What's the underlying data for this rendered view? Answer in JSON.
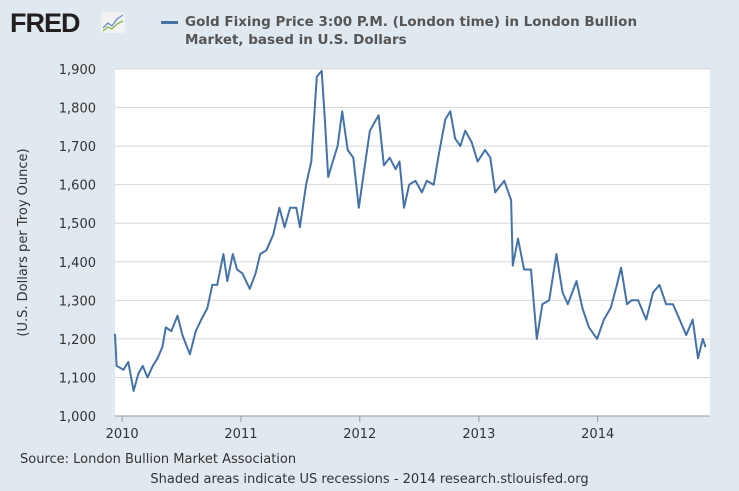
{
  "header": {
    "logo": "FRED",
    "logo_icon": "line-chart-icon"
  },
  "footer": {
    "source": "Source: London Bullion Market Association",
    "note": "Shaded areas indicate US recessions - 2014 research.stlouisfed.org"
  },
  "chart_data": {
    "type": "line",
    "title": "",
    "legend": "Gold Fixing Price 3:00 P.M. (London time) in London Bullion Market, based in U.S. Dollars",
    "legend_position": "top",
    "xlabel": "",
    "ylabel": "(U.S. Dollars per Troy Ounce)",
    "ylim": [
      1000,
      1900
    ],
    "xlim": [
      "2009-12-10",
      "2014-12-12"
    ],
    "yticks": [
      "1,000",
      "1,100",
      "1,200",
      "1,300",
      "1,400",
      "1,500",
      "1,600",
      "1,700",
      "1,800",
      "1,900"
    ],
    "xticks": [
      "2010",
      "2011",
      "2012",
      "2013",
      "2014"
    ],
    "grid": true,
    "color": "#4572a7",
    "series": [
      {
        "x": [
          "2009-12-10",
          "2009-12-15",
          "2010-01-05",
          "2010-01-20",
          "2010-02-05",
          "2010-02-20",
          "2010-03-05",
          "2010-03-20",
          "2010-04-05",
          "2010-04-20",
          "2010-05-05",
          "2010-05-15",
          "2010-06-01",
          "2010-06-20",
          "2010-07-05",
          "2010-07-28",
          "2010-08-15",
          "2010-09-01",
          "2010-09-20",
          "2010-10-05",
          "2010-10-20",
          "2010-11-08",
          "2010-11-20",
          "2010-12-07",
          "2010-12-20",
          "2011-01-05",
          "2011-01-28",
          "2011-02-15",
          "2011-03-01",
          "2011-03-20",
          "2011-04-10",
          "2011-04-29",
          "2011-05-15",
          "2011-06-01",
          "2011-06-20",
          "2011-07-01",
          "2011-07-20",
          "2011-08-05",
          "2011-08-22",
          "2011-09-06",
          "2011-09-15",
          "2011-09-26",
          "2011-10-10",
          "2011-10-25",
          "2011-11-08",
          "2011-11-25",
          "2011-12-12",
          "2011-12-29",
          "2012-01-15",
          "2012-02-01",
          "2012-02-28",
          "2012-03-15",
          "2012-04-02",
          "2012-04-20",
          "2012-05-02",
          "2012-05-16",
          "2012-06-01",
          "2012-06-20",
          "2012-07-10",
          "2012-07-25",
          "2012-08-15",
          "2012-08-31",
          "2012-09-20",
          "2012-10-05",
          "2012-10-20",
          "2012-11-05",
          "2012-11-20",
          "2012-12-10",
          "2012-12-28",
          "2013-01-20",
          "2013-02-05",
          "2013-02-20",
          "2013-03-20",
          "2013-04-10",
          "2013-04-15",
          "2013-05-01",
          "2013-05-20",
          "2013-06-10",
          "2013-06-28",
          "2013-07-15",
          "2013-08-05",
          "2013-08-27",
          "2013-09-15",
          "2013-10-01",
          "2013-10-28",
          "2013-11-15",
          "2013-12-05",
          "2013-12-30",
          "2014-01-20",
          "2014-02-10",
          "2014-03-01",
          "2014-03-14",
          "2014-04-01",
          "2014-04-15",
          "2014-05-05",
          "2014-05-30",
          "2014-06-20",
          "2014-07-10",
          "2014-07-30",
          "2014-08-20",
          "2014-09-10",
          "2014-09-30",
          "2014-10-20",
          "2014-11-05",
          "2014-11-20",
          "2014-11-28"
        ],
        "values": [
          1212,
          1130,
          1120,
          1140,
          1065,
          1110,
          1130,
          1100,
          1130,
          1150,
          1180,
          1230,
          1220,
          1260,
          1210,
          1160,
          1220,
          1250,
          1280,
          1340,
          1340,
          1420,
          1350,
          1420,
          1380,
          1370,
          1330,
          1370,
          1420,
          1430,
          1470,
          1540,
          1490,
          1540,
          1540,
          1490,
          1600,
          1660,
          1880,
          1895,
          1780,
          1620,
          1660,
          1700,
          1790,
          1690,
          1670,
          1540,
          1640,
          1740,
          1780,
          1650,
          1670,
          1640,
          1660,
          1540,
          1600,
          1610,
          1580,
          1610,
          1600,
          1680,
          1770,
          1790,
          1720,
          1700,
          1740,
          1710,
          1660,
          1690,
          1670,
          1580,
          1610,
          1560,
          1390,
          1460,
          1380,
          1380,
          1200,
          1290,
          1300,
          1420,
          1320,
          1290,
          1350,
          1280,
          1230,
          1200,
          1250,
          1280,
          1340,
          1385,
          1290,
          1300,
          1300,
          1250,
          1320,
          1340,
          1290,
          1290,
          1250,
          1210,
          1250,
          1150,
          1200,
          1180
        ]
      }
    ]
  }
}
